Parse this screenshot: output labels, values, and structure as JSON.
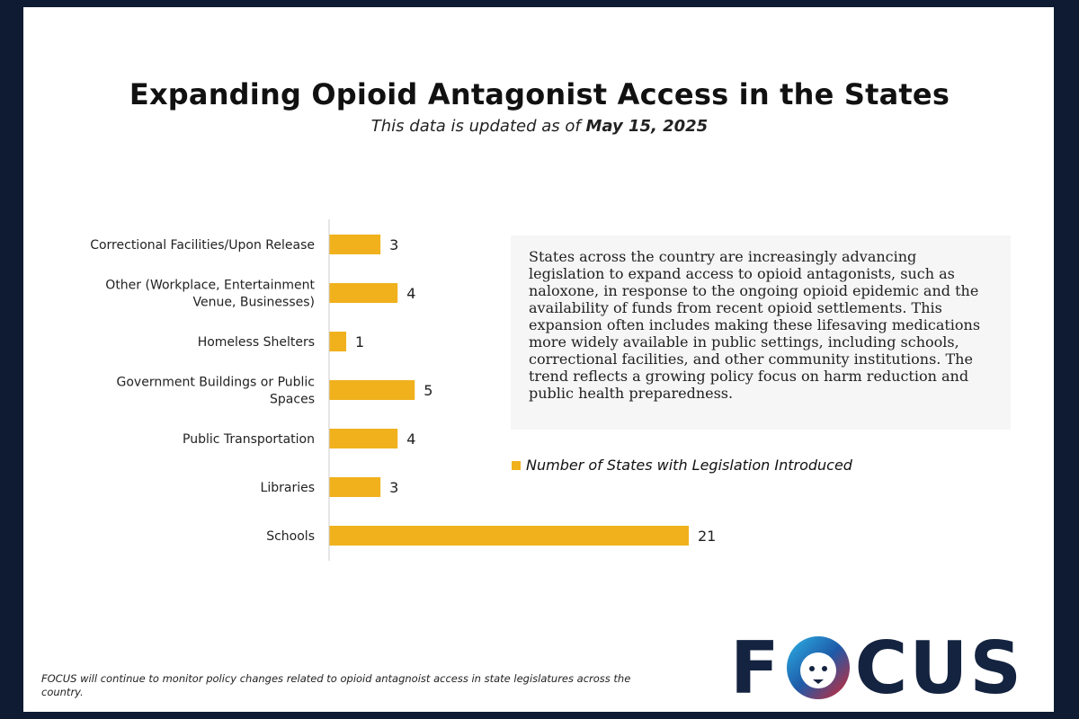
{
  "header": {
    "title": "Expanding Opioid Antagonist Access in the States",
    "subtitle_prefix": "This data is updated as of",
    "subtitle_date": "May 15, 2025"
  },
  "description": "States across the country are increasingly advancing legislation to expand access to opioid antagonists, such as naloxone, in response to the ongoing opioid epidemic and the availability of funds from recent opioid settlements. This expansion often includes making these lifesaving medications more widely available in public settings, including schools, correctional facilities, and other community institutions. The trend reflects a growing policy focus on harm reduction and public health preparedness.",
  "footnote": "FOCUS will continue to monitor policy changes related to opioid antagnoist access in state legislatures across the country.",
  "logo": {
    "text_left": "F",
    "text_right": "CUS"
  },
  "colors": {
    "bar": "#f0b11d",
    "navy": "#14233f",
    "axis": "#cccccc"
  },
  "chart_data": {
    "type": "bar",
    "orientation": "horizontal",
    "categories": [
      [
        "Correctional Facilities/Upon Release"
      ],
      [
        "Other (Workplace, Entertainment",
        "Venue, Businesses)"
      ],
      [
        "Homeless Shelters"
      ],
      [
        "Government Buildings or Public",
        "Spaces"
      ],
      [
        "Public Transportation"
      ],
      [
        "Libraries"
      ],
      [
        "Schools"
      ]
    ],
    "series": [
      {
        "name": "Number of States with Legislation Introduced",
        "values": [
          3,
          4,
          1,
          5,
          4,
          3,
          21
        ]
      }
    ],
    "xlim": [
      0,
      21
    ],
    "grid": false,
    "data_labels": true,
    "legend_position": "right"
  }
}
